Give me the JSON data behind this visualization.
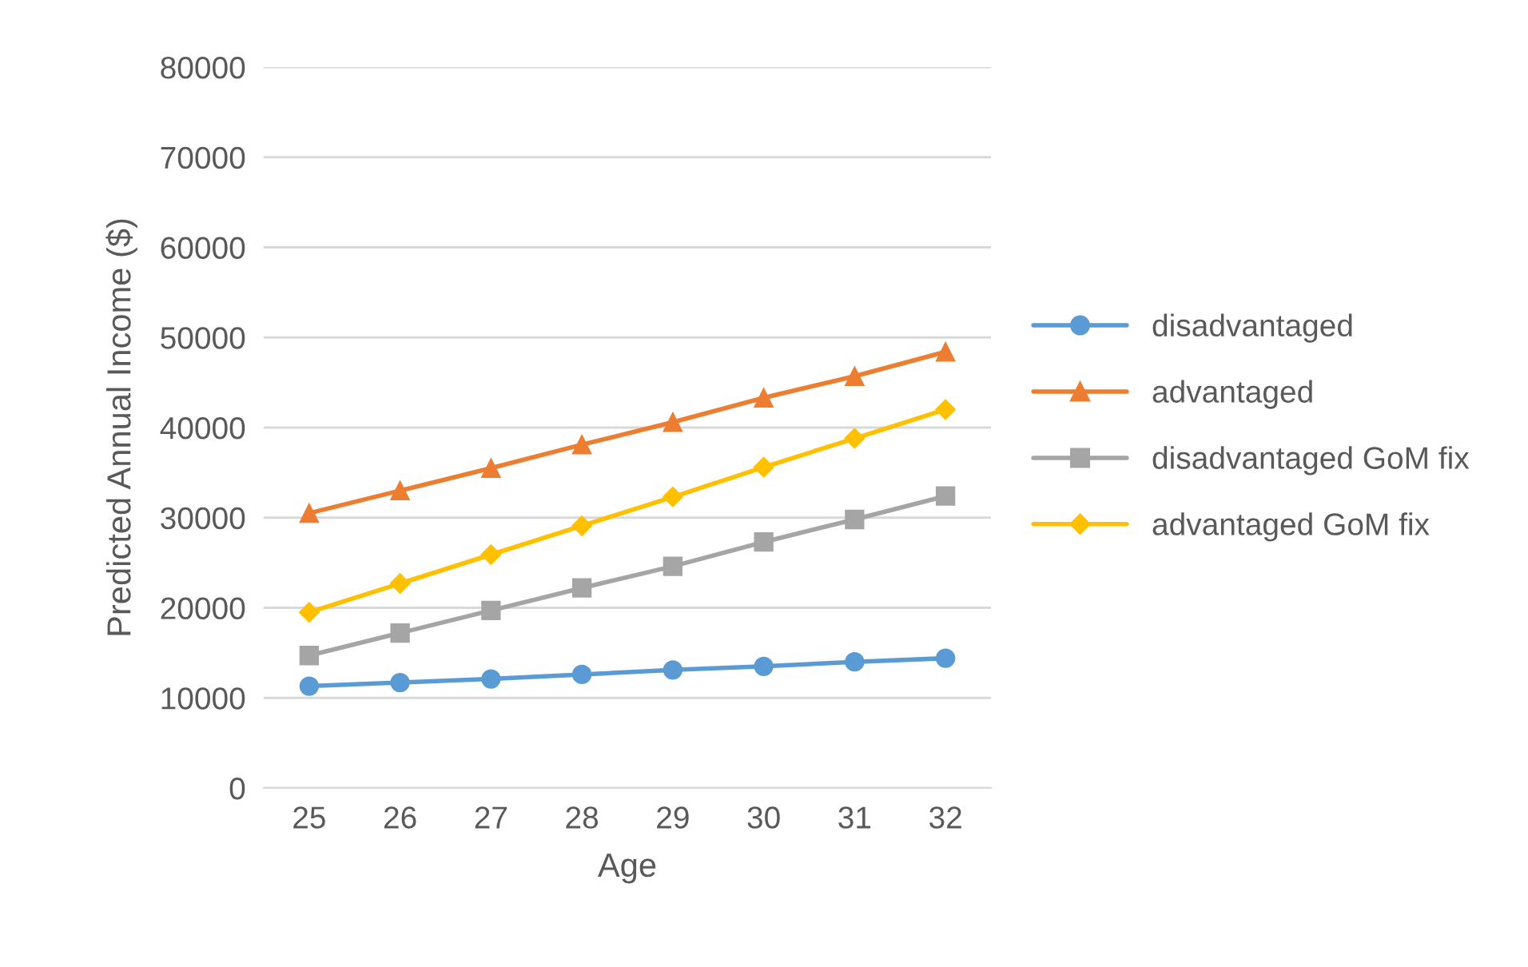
{
  "chart_data": {
    "type": "line",
    "xlabel": "Age",
    "ylabel": "Predicted Annual Income ($)",
    "categories": [
      "25",
      "26",
      "27",
      "28",
      "29",
      "30",
      "31",
      "32"
    ],
    "series": [
      {
        "name": "disadvantaged",
        "color": "#5b9bd5",
        "marker": "circle",
        "values": [
          11300,
          11700,
          12100,
          12600,
          13100,
          13500,
          14000,
          14400
        ]
      },
      {
        "name": "advantaged",
        "color": "#ed7d31",
        "marker": "triangle",
        "values": [
          30500,
          33000,
          35500,
          38100,
          40600,
          43300,
          45700,
          48400
        ]
      },
      {
        "name": "disadvantaged GoM fix",
        "color": "#a5a5a5",
        "marker": "square",
        "values": [
          14700,
          17200,
          19700,
          22200,
          24600,
          27300,
          29800,
          32400
        ]
      },
      {
        "name": "advantaged GoM fix",
        "color": "#ffc000",
        "marker": "diamond",
        "values": [
          19500,
          22700,
          25900,
          29100,
          32300,
          35600,
          38800,
          42000
        ]
      }
    ],
    "ylim": [
      0,
      80000
    ],
    "yticks": [
      0,
      10000,
      20000,
      30000,
      40000,
      50000,
      60000,
      70000,
      80000
    ],
    "grid": "y",
    "legend": "right"
  }
}
